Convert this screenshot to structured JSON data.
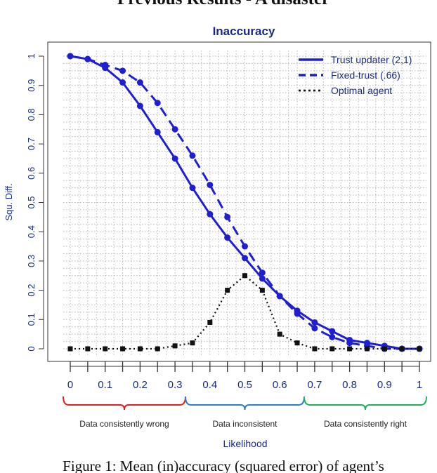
{
  "page": {
    "top_heading": "Previous Results - A disaster",
    "caption": "Figure 1: Mean (in)accuracy (squared error) of agent’s"
  },
  "colors": {
    "blue": "#1f1fd1",
    "axis_text": "#1a2a8a",
    "grid": "#b8b8b8",
    "red": "#e02020",
    "mid_blue": "#2a7fd4",
    "green": "#22b05a"
  },
  "chart_data": {
    "type": "line",
    "title": "Inaccuracy",
    "xlabel": "Likelihood",
    "ylabel": "Squ. Diff.",
    "xlim": [
      0,
      1
    ],
    "ylim": [
      0,
      1
    ],
    "grid": true,
    "legend_position": "top-right",
    "x_ticks": [
      "0",
      "0.1",
      "0.2",
      "0.3",
      "0.4",
      "0.5",
      "0.6",
      "0.7",
      "0.8",
      "0.9",
      "1"
    ],
    "y_ticks": [
      "0",
      "0.1",
      "0.2",
      "0.3",
      "0.4",
      "0.5",
      "0.6",
      "0.7",
      "0.8",
      "0.9",
      "1"
    ],
    "x": [
      0,
      0.05,
      0.1,
      0.15,
      0.2,
      0.25,
      0.3,
      0.35,
      0.4,
      0.45,
      0.5,
      0.55,
      0.6,
      0.65,
      0.7,
      0.75,
      0.8,
      0.85,
      0.9,
      0.95,
      1
    ],
    "series": [
      {
        "name": "Trust updater (2,1)",
        "style": "solid",
        "values": [
          1.0,
          0.99,
          0.96,
          0.91,
          0.83,
          0.74,
          0.65,
          0.55,
          0.46,
          0.38,
          0.31,
          0.24,
          0.18,
          0.13,
          0.09,
          0.06,
          0.03,
          0.02,
          0.01,
          0.0,
          0.0
        ]
      },
      {
        "name": "Fixed-trust (.66)",
        "style": "dashed",
        "values": [
          1.0,
          0.99,
          0.97,
          0.95,
          0.91,
          0.84,
          0.75,
          0.66,
          0.56,
          0.45,
          0.35,
          0.26,
          0.18,
          0.12,
          0.07,
          0.04,
          0.02,
          0.01,
          0.0,
          0.0,
          0.0
        ]
      },
      {
        "name": "Optimal agent",
        "style": "dotted",
        "values": [
          0.0,
          0.0,
          0.0,
          0.0,
          0.0,
          0.0,
          0.01,
          0.02,
          0.09,
          0.2,
          0.25,
          0.2,
          0.05,
          0.02,
          0.0,
          0.0,
          0.0,
          0.0,
          0.0,
          0.0,
          0.0
        ]
      }
    ],
    "regions": [
      {
        "label": "Data consistently wrong",
        "from": 0,
        "to": 0.33,
        "color": "#e02020"
      },
      {
        "label": "Data inconsistent",
        "from": 0.33,
        "to": 0.67,
        "color": "#2a7fd4"
      },
      {
        "label": "Data consistently right",
        "from": 0.67,
        "to": 1,
        "color": "#22b05a"
      }
    ]
  }
}
